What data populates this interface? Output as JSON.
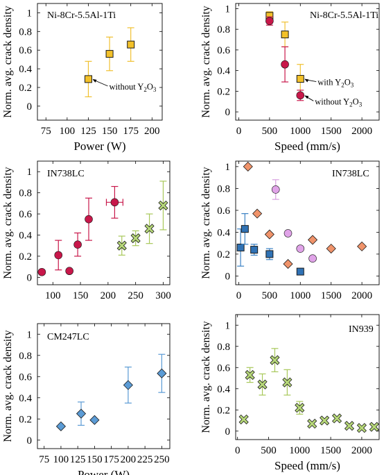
{
  "y_label": "Norm. avg. crack density",
  "chart_data": [
    {
      "type": "scatter",
      "title": "Ni-8Cr-5.5Al-1Ti",
      "xlabel": "Power (W)",
      "ylabel": "Norm. avg. crack density",
      "xlim": [
        65,
        212
      ],
      "ylim": [
        -0.15,
        1.1
      ],
      "xticks": [
        75,
        100,
        125,
        150,
        175,
        200
      ],
      "yticks": [
        0,
        0.2,
        0.4,
        0.6,
        0.8,
        1
      ],
      "series": [
        {
          "name": "",
          "marker": "square",
          "color": "#f3c12a",
          "error_color": "#f0c030",
          "points": [
            {
              "x": 125,
              "y": 0.29,
              "err": 0.19
            },
            {
              "x": 150,
              "y": 0.56,
              "err": 0.18
            },
            {
              "x": 175,
              "y": 0.66,
              "err": 0.18
            }
          ]
        }
      ],
      "annotations": [
        {
          "text": "without Y",
          "sub": "2",
          "tail": "O",
          "sub2": "3",
          "x": 125,
          "y": 0.29
        }
      ]
    },
    {
      "type": "scatter",
      "title": "Ni-8Cr-5.5Al-1Ti",
      "xlabel": "Speed (mm/s)",
      "ylabel": "Norm. avg. crack density",
      "xlim": [
        -50,
        2280
      ],
      "ylim": [
        -0.08,
        1.05
      ],
      "xticks": [
        0,
        500,
        1000,
        1500,
        2000
      ],
      "yticks": [
        0,
        0.2,
        0.4,
        0.6,
        0.8,
        1
      ],
      "series": [
        {
          "name": "with Y2O3",
          "marker": "square",
          "color": "#f3c12a",
          "error_color": "#f0c030",
          "points": [
            {
              "x": 500,
              "y": 0.93,
              "err": 0.04
            },
            {
              "x": 750,
              "y": 0.75,
              "err": 0.12
            },
            {
              "x": 1000,
              "y": 0.32,
              "err": 0.14
            }
          ]
        },
        {
          "name": "without Y2O3",
          "marker": "circle",
          "color": "#c8174a",
          "error_color": "#c8174a",
          "points": [
            {
              "x": 500,
              "y": 0.88,
              "err": 0.04
            },
            {
              "x": 750,
              "y": 0.46,
              "err": 0.17
            },
            {
              "x": 1000,
              "y": 0.16,
              "err": 0.05
            }
          ]
        }
      ],
      "annotations": [
        {
          "text": "with Y",
          "sub": "2",
          "tail": "O",
          "sub2": "3",
          "x": 1000,
          "y": 0.32
        },
        {
          "text": "without Y",
          "sub": "2",
          "tail": "O",
          "sub2": "3",
          "x": 1000,
          "y": 0.16
        }
      ]
    },
    {
      "type": "scatter",
      "title": "IN738LC",
      "xlabel": "",
      "ylabel": "Norm. avg. crack density",
      "xlim": [
        72,
        312
      ],
      "ylim": [
        -0.07,
        1.1
      ],
      "xticks": [
        100,
        150,
        200,
        250,
        300
      ],
      "yticks": [
        0,
        0.2,
        0.4,
        0.6,
        0.8,
        1
      ],
      "series": [
        {
          "name": "",
          "marker": "circle",
          "color": "#c8174a",
          "error_color": "#c8174a",
          "points": [
            {
              "x": 80,
              "y": 0.05,
              "err": 0
            },
            {
              "x": 110,
              "y": 0.21,
              "err": 0.14
            },
            {
              "x": 130,
              "y": 0.06,
              "err": 0
            },
            {
              "x": 145,
              "y": 0.31,
              "err": 0.11
            },
            {
              "x": 165,
              "y": 0.55,
              "err": 0.2
            },
            {
              "x": 212,
              "y": 0.71,
              "err": 0.15,
              "xerr": 15
            }
          ]
        },
        {
          "name": "",
          "marker": "cross",
          "color": "#b7d879",
          "error_color": "#a8c85a",
          "points": [
            {
              "x": 225,
              "y": 0.3,
              "err": 0.09
            },
            {
              "x": 250,
              "y": 0.37,
              "err": 0.07
            },
            {
              "x": 275,
              "y": 0.46,
              "err": 0.14
            },
            {
              "x": 300,
              "y": 0.68,
              "err": 0.23
            }
          ]
        }
      ]
    },
    {
      "type": "scatter",
      "title": "IN738LC",
      "xlabel": "",
      "ylabel": "Norm. avg. crack density",
      "xlim": [
        -50,
        2280
      ],
      "ylim": [
        -0.08,
        1.05
      ],
      "xticks": [
        0,
        500,
        1000,
        1500,
        2000
      ],
      "yticks": [
        0,
        0.2,
        0.4,
        0.6,
        0.8,
        1
      ],
      "series": [
        {
          "name": "",
          "marker": "square",
          "color": "#2f72b5",
          "error_color": "#3b82c4",
          "points": [
            {
              "x": 30,
              "y": 0.26,
              "err": 0.17
            },
            {
              "x": 100,
              "y": 0.43,
              "err": 0.14
            },
            {
              "x": 250,
              "y": 0.24,
              "err": 0.05
            },
            {
              "x": 500,
              "y": 0.2,
              "err": 0.05
            },
            {
              "x": 1000,
              "y": 0.04,
              "err": 0
            }
          ]
        },
        {
          "name": "",
          "marker": "diamond",
          "color": "#f0936a",
          "error_color": "#f0936a",
          "points": [
            {
              "x": 150,
              "y": 1.0,
              "err": 0
            },
            {
              "x": 300,
              "y": 0.57,
              "err": 0
            },
            {
              "x": 500,
              "y": 0.38,
              "err": 0
            },
            {
              "x": 800,
              "y": 0.11,
              "err": 0
            },
            {
              "x": 1200,
              "y": 0.33,
              "err": 0
            },
            {
              "x": 1500,
              "y": 0.25,
              "err": 0
            },
            {
              "x": 2000,
              "y": 0.27,
              "err": 0
            }
          ]
        },
        {
          "name": "",
          "marker": "circle",
          "color": "#e0a3e8",
          "error_color": "#d8a0e0",
          "points": [
            {
              "x": 600,
              "y": 0.79,
              "err": 0.09
            },
            {
              "x": 800,
              "y": 0.39,
              "err": 0
            },
            {
              "x": 1000,
              "y": 0.25,
              "err": 0
            },
            {
              "x": 1200,
              "y": 0.16,
              "err": 0
            }
          ]
        }
      ]
    },
    {
      "type": "scatter",
      "title": "CM247LC",
      "xlabel": "Power (W)",
      "ylabel": "Norm. avg. crack density",
      "xlim": [
        65,
        262
      ],
      "ylim": [
        -0.08,
        1.1
      ],
      "xticks": [
        75,
        100,
        125,
        150,
        175,
        200,
        225,
        250
      ],
      "yticks": [
        0,
        0.2,
        0.4,
        0.6,
        0.8,
        1
      ],
      "series": [
        {
          "name": "",
          "marker": "diamond",
          "color": "#5b9bd5",
          "error_color": "#5b9bd5",
          "points": [
            {
              "x": 100,
              "y": 0.13,
              "err": 0
            },
            {
              "x": 130,
              "y": 0.25,
              "err": 0.11
            },
            {
              "x": 150,
              "y": 0.19,
              "err": 0
            },
            {
              "x": 200,
              "y": 0.52,
              "err": 0.17
            },
            {
              "x": 250,
              "y": 0.63,
              "err": 0.18
            }
          ]
        }
      ]
    },
    {
      "type": "scatter",
      "title": "IN939",
      "xlabel": "Speed (mm/s)",
      "ylabel": "Norm. avg. crack density",
      "xlim": [
        -30,
        2280
      ],
      "ylim": [
        -0.08,
        1.1
      ],
      "xticks": [
        0,
        500,
        1000,
        1500,
        2000
      ],
      "yticks": [
        0,
        0.2,
        0.4,
        0.6,
        0.8,
        1
      ],
      "series": [
        {
          "name": "",
          "marker": "cross",
          "color": "#b7d879",
          "error_color": "#a8c85a",
          "points": [
            {
              "x": 100,
              "y": 0.11,
              "err": 0
            },
            {
              "x": 200,
              "y": 0.53,
              "err": 0.07
            },
            {
              "x": 400,
              "y": 0.44,
              "err": 0.1
            },
            {
              "x": 600,
              "y": 0.67,
              "err": 0.11
            },
            {
              "x": 800,
              "y": 0.46,
              "err": 0.12
            },
            {
              "x": 1000,
              "y": 0.22,
              "err": 0.06
            },
            {
              "x": 1200,
              "y": 0.07,
              "err": 0
            },
            {
              "x": 1400,
              "y": 0.1,
              "err": 0
            },
            {
              "x": 1600,
              "y": 0.12,
              "err": 0
            },
            {
              "x": 1800,
              "y": 0.05,
              "err": 0
            },
            {
              "x": 2000,
              "y": 0.03,
              "err": 0
            },
            {
              "x": 2200,
              "y": 0.04,
              "err": 0
            }
          ]
        }
      ]
    }
  ]
}
